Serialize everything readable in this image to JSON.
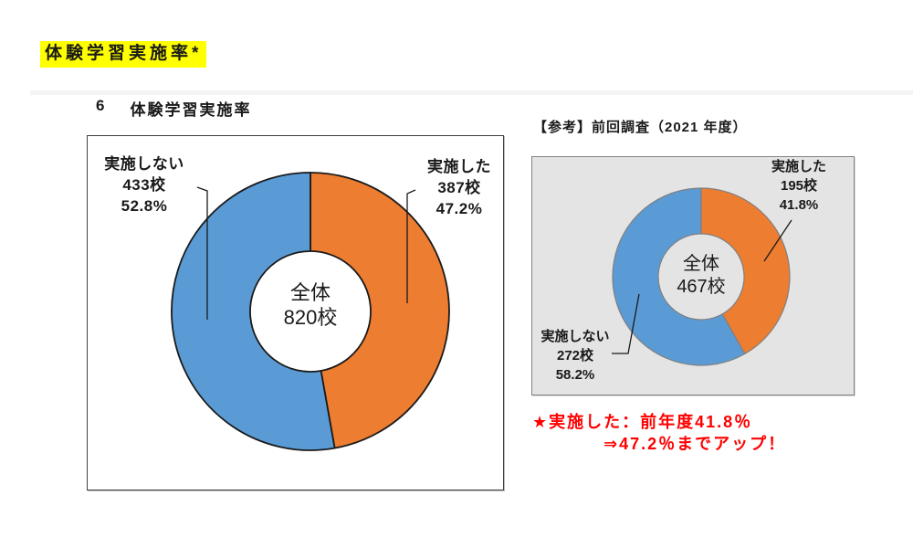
{
  "page": {
    "title": "体験学習実施率*",
    "section_number": "6",
    "section_title": "体験学習実施率"
  },
  "colors": {
    "title_highlight": "#FFFF00",
    "implemented": "#ED7D31",
    "not_implemented": "#5B9BD5",
    "note_text": "#FF0000",
    "ref_panel_bg": "#E4E4E4"
  },
  "ref_header": "【参考】前回調査（2021 年度）",
  "chart_data": [
    {
      "type": "pie",
      "variant": "donut",
      "title": "体験学習実施率",
      "start_angle": "top",
      "direction": "clockwise",
      "center": {
        "label": "全体",
        "value": "820校"
      },
      "slices": [
        {
          "label": "実施した",
          "count_label": "387校",
          "percent": 47.2,
          "percent_label": "47.2%",
          "color": "#ED7D31"
        },
        {
          "label": "実施しない",
          "count_label": "433校",
          "percent": 52.8,
          "percent_label": "52.8%",
          "color": "#5B9BD5"
        }
      ]
    },
    {
      "type": "pie",
      "variant": "donut",
      "title": "【参考】前回調査（2021 年度）",
      "start_angle": "top",
      "direction": "clockwise",
      "center": {
        "label": "全体",
        "value": "467校"
      },
      "slices": [
        {
          "label": "実施した",
          "count_label": "195校",
          "percent": 41.8,
          "percent_label": "41.8%",
          "color": "#ED7D31"
        },
        {
          "label": "実施しない",
          "count_label": "272校",
          "percent": 58.2,
          "percent_label": "58.2%",
          "color": "#5B9BD5"
        }
      ]
    }
  ],
  "note": {
    "line1": "★実施した：前年度41.8％",
    "line2": "⇒47.2％までアップ！"
  }
}
